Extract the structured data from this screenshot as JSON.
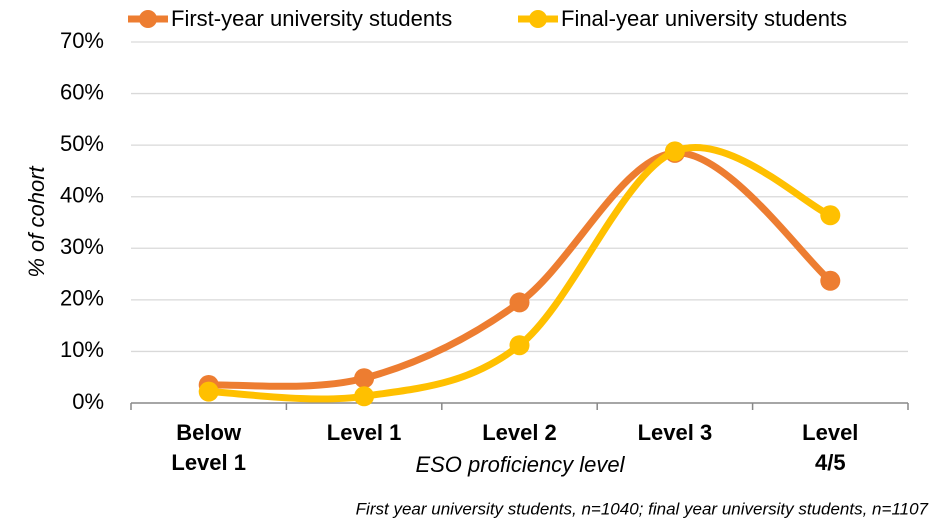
{
  "chart_data": {
    "type": "line",
    "smooth": true,
    "x_label": "ESO proficiency level",
    "y_label": "% of cohort",
    "note": "First year university students, n=1040; final year university students, n=1107",
    "categories": [
      "Below Level 1",
      "Level 1",
      "Level 2",
      "Level 3",
      "Level 4/5"
    ],
    "series": [
      {
        "name": "First-year university students",
        "color": "#ed7d31",
        "values": [
          3.5,
          4.8,
          19.5,
          48.5,
          23.7
        ]
      },
      {
        "name": "Final-year university students",
        "color": "#ffc000",
        "values": [
          2.2,
          1.3,
          11.2,
          48.8,
          36.4
        ]
      }
    ],
    "ylim": [
      0,
      70
    ],
    "yticks": [
      {
        "value": 0,
        "label": "0%"
      },
      {
        "value": 10,
        "label": "10%"
      },
      {
        "value": 20,
        "label": "20%"
      },
      {
        "value": 30,
        "label": "30%"
      },
      {
        "value": 40,
        "label": "40%"
      },
      {
        "value": 50,
        "label": "50%"
      },
      {
        "value": 60,
        "label": "60%"
      },
      {
        "value": 70,
        "label": "70%"
      }
    ],
    "grid": true,
    "legend": "top"
  }
}
